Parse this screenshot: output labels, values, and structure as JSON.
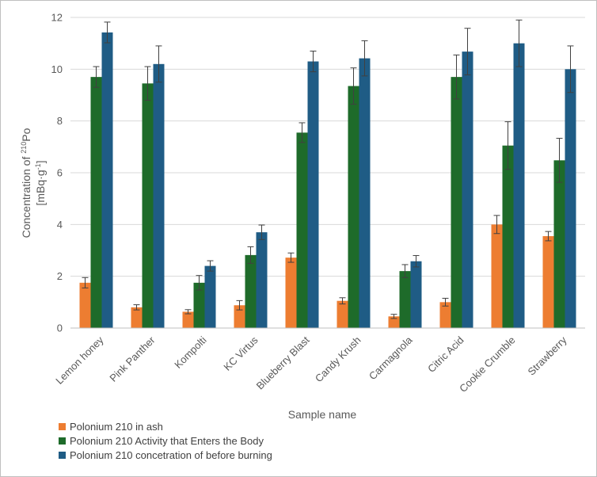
{
  "chart_data": {
    "type": "bar",
    "title": "",
    "xlabel": "Sample name",
    "ylabel_line1_prefix": "Concentration of ",
    "ylabel_sup": "210",
    "ylabel_line1_suffix": "Po",
    "ylabel_line2": "[mBq·g",
    "ylabel_line2_sup": "-1",
    "ylabel_line2_end": "]",
    "ylim": [
      0,
      12
    ],
    "yticks": [
      0,
      2,
      4,
      6,
      8,
      10,
      12
    ],
    "grid": true,
    "legend_position": "bottom-left",
    "categories": [
      "Lemon honey",
      "Pink Panther",
      "Kompolti",
      "KC Virtus",
      "Blueberry Blast",
      "Candy Krush",
      "Carmagnola",
      "Citric Acid",
      "Cookie Crumble",
      "Strawberry"
    ],
    "series": [
      {
        "name": "Polonium 210 in ash",
        "color": "#ed7d31",
        "values": [
          1.75,
          0.8,
          0.63,
          0.88,
          2.72,
          1.05,
          0.45,
          1.0,
          4.0,
          3.55
        ],
        "errors": [
          0.2,
          0.1,
          0.08,
          0.18,
          0.18,
          0.12,
          0.08,
          0.15,
          0.35,
          0.18
        ]
      },
      {
        "name": "Polonium 210 Activity that Enters the Body",
        "color": "#1e6b2a",
        "values": [
          9.7,
          9.45,
          1.75,
          2.82,
          7.55,
          9.35,
          2.2,
          9.7,
          7.05,
          6.48
        ],
        "errors": [
          0.4,
          0.65,
          0.28,
          0.32,
          0.38,
          0.7,
          0.25,
          0.85,
          0.92,
          0.85
        ]
      },
      {
        "name": "Polonium 210 concetration of before burning",
        "color": "#1f5c85",
        "values": [
          11.42,
          10.2,
          2.4,
          3.7,
          10.3,
          10.42,
          2.58,
          10.68,
          11.0,
          10.0
        ],
        "errors": [
          0.4,
          0.7,
          0.2,
          0.28,
          0.4,
          0.68,
          0.22,
          0.9,
          0.9,
          0.9
        ]
      }
    ]
  }
}
